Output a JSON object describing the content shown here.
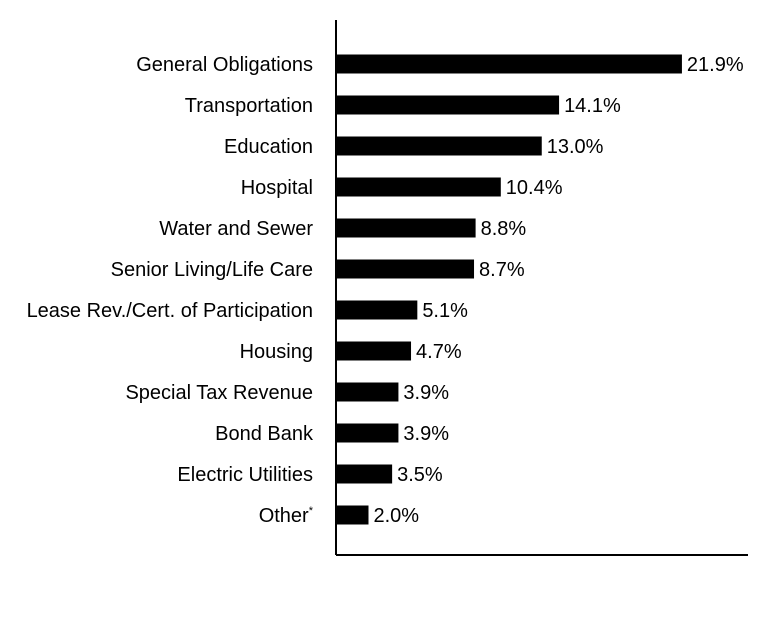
{
  "chart_data": {
    "type": "bar",
    "orientation": "horizontal",
    "categories": [
      "General Obligations",
      "Transportation",
      "Education",
      "Hospital",
      "Water and Sewer",
      "Senior Living/Life Care",
      "Lease Rev./Cert. of Participation",
      "Housing",
      "Special Tax Revenue",
      "Bond Bank",
      "Electric Utilities",
      "Other"
    ],
    "category_footnote": {
      "Other": "*"
    },
    "values": [
      21.9,
      14.1,
      13.0,
      10.4,
      8.8,
      8.7,
      5.1,
      4.7,
      3.9,
      3.9,
      3.5,
      2.0
    ],
    "value_labels": [
      "21.9%",
      "14.1%",
      "13.0%",
      "10.4%",
      "8.8%",
      "8.7%",
      "5.1%",
      "4.7%",
      "3.9%",
      "3.9%",
      "3.5%",
      "2.0%"
    ],
    "bar_color": "#000000",
    "grid": false,
    "legend": "none"
  }
}
